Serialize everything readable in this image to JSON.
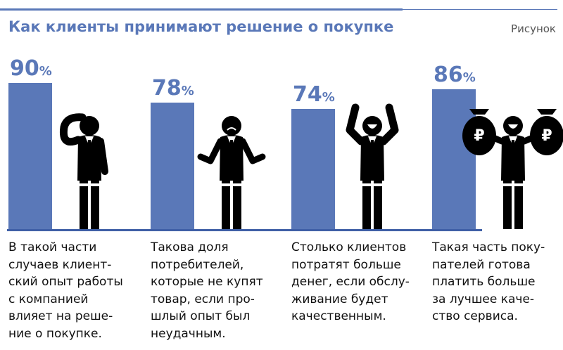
{
  "header": {
    "title": "Как клиенты принимают решение о покупке",
    "figure_label": "Рисунок"
  },
  "colors": {
    "accent": "#5a78b8",
    "text": "#111111",
    "figure": "#000000"
  },
  "chart_data": {
    "type": "bar",
    "title": "Как клиенты принимают решение о покупке",
    "unit": "%",
    "ylim": [
      0,
      100
    ],
    "grid": false,
    "categories": [
      "В такой части случаев клиентский опыт работы с компанией влияет на решение о покупке.",
      "Такова доля потребителей, которые не купят товар, если прошлый опыт был неудачным.",
      "Столько клиентов потратят больше денег, если обслуживание будет качественным.",
      "Такая часть покупателей готова платить больше за лучшее качество сервиса."
    ],
    "values": [
      90,
      78,
      74,
      86
    ],
    "value_labels": [
      "90",
      "78",
      "74",
      "86"
    ],
    "unit_label": "%",
    "descriptions": [
      "В такой части\nслучаев клиент-\nский опыт работы\nс компанией\nвлияет на реше-\nние о покупке.",
      "Такова доля\nпотребителей,\nкоторые не купят\nтовар, если про-\nшлый опыт был\nнеудачным.",
      "Столько клиентов\nпотратят больше\nденег, если обслу-\nживание будет\nкачественным.",
      "Такая часть поку-\nпателей готова\nплатить больше\nза лучшее каче-\nство сервиса."
    ],
    "icons": [
      "thinking-man-icon",
      "shrugging-sad-man-icon",
      "cheering-man-icon",
      "man-with-money-bags-icon"
    ],
    "bag_symbol": "₽"
  }
}
